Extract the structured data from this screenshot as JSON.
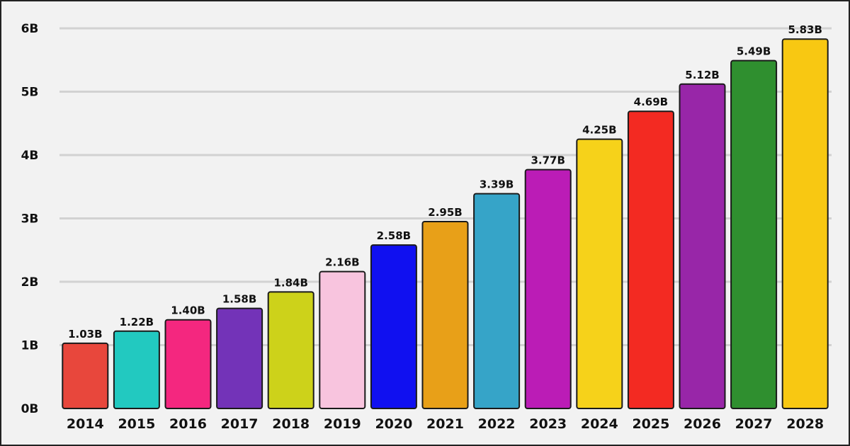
{
  "chart_data": {
    "type": "bar",
    "title": "",
    "xlabel": "",
    "ylabel": "",
    "categories": [
      "2014",
      "2015",
      "2016",
      "2017",
      "2018",
      "2019",
      "2020",
      "2021",
      "2022",
      "2023",
      "2024",
      "2025",
      "2026",
      "2027",
      "2028"
    ],
    "values": [
      1.03,
      1.22,
      1.4,
      1.58,
      1.84,
      2.16,
      2.58,
      2.95,
      3.39,
      3.77,
      4.25,
      4.69,
      5.12,
      5.49,
      5.83
    ],
    "value_labels": [
      "1.03B",
      "1.22B",
      "1.40B",
      "1.58B",
      "1.84B",
      "2.16B",
      "2.58B",
      "2.95B",
      "3.39B",
      "3.77B",
      "4.25B",
      "4.69B",
      "5.12B",
      "5.49B",
      "5.83B"
    ],
    "bar_colors": [
      "#e8473c",
      "#22c9c0",
      "#f4277f",
      "#7333b8",
      "#cdd21a",
      "#f8c4de",
      "#1010f0",
      "#e8a018",
      "#36a4c8",
      "#bb1cb6",
      "#f6d21a",
      "#f32a22",
      "#9826a8",
      "#2f8f2f",
      "#f8c812"
    ],
    "ylim": [
      0,
      6
    ],
    "yticks": [
      0,
      1,
      2,
      3,
      4,
      5,
      6
    ],
    "ytick_labels": [
      "0B",
      "1B",
      "2B",
      "3B",
      "4B",
      "5B",
      "6B"
    ],
    "grid": true,
    "legend": "none"
  }
}
